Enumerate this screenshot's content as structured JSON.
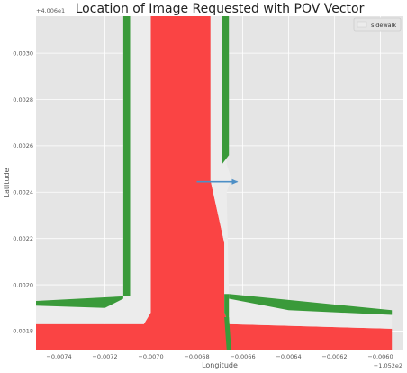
{
  "chart_data": {
    "type": "map",
    "title": "Location of Image Requested with POV Vector",
    "xlabel": "Longitude",
    "ylabel": "Latitude",
    "x_offset_label": "−1.052e2",
    "y_offset_label": "+4.006e1",
    "xlim": [
      -0.0075,
      -0.0059
    ],
    "ylim": [
      0.00172,
      0.00316
    ],
    "x_ticks": [
      -0.0074,
      -0.0072,
      -0.007,
      -0.0068,
      -0.0066,
      -0.0064,
      -0.0062,
      -0.006
    ],
    "x_tick_labels": [
      "−0.0074",
      "−0.0072",
      "−0.0070",
      "−0.0068",
      "−0.0066",
      "−0.0064",
      "−0.0062",
      "−0.0060"
    ],
    "y_ticks": [
      0.0018,
      0.002,
      0.0022,
      0.0024,
      0.0026,
      0.0028,
      0.003
    ],
    "y_tick_labels": [
      "0.0018",
      "0.0020",
      "0.0022",
      "0.0024",
      "0.0026",
      "0.0028",
      "0.0030"
    ],
    "grid": true,
    "legend": {
      "position": "top-right",
      "entries": [
        "sidewalk"
      ]
    },
    "colors": {
      "background": "#e5e5e5",
      "grid": "#ffffff",
      "road": "#fa4444",
      "sidewalk": "#ececec",
      "sidewalk_edge": "#3a9a3a",
      "arrow": "#4d8fc6"
    },
    "layers": {
      "road": [
        [
          [
            -0.007,
            0.00316
          ],
          [
            -0.00674,
            0.00316
          ],
          [
            -0.00674,
            0.00245
          ],
          [
            -0.00668,
            0.00218
          ],
          [
            -0.00668,
            0.00188
          ],
          [
            -0.00666,
            0.00183
          ],
          [
            -0.00595,
            0.00181
          ],
          [
            -0.00595,
            0.00172
          ],
          [
            -0.0075,
            0.00172
          ],
          [
            -0.0075,
            0.00183
          ],
          [
            -0.00703,
            0.00183
          ],
          [
            -0.007,
            0.00188
          ]
        ]
      ],
      "sidewalk": [
        [
          [
            -0.00712,
            0.00316
          ],
          [
            -0.007,
            0.00316
          ],
          [
            -0.007,
            0.00188
          ],
          [
            -0.00703,
            0.00183
          ],
          [
            -0.0075,
            0.00183
          ],
          [
            -0.0075,
            0.00193
          ],
          [
            -0.00712,
            0.00195
          ]
        ],
        [
          [
            -0.00674,
            0.00316
          ],
          [
            -0.00667,
            0.00316
          ],
          [
            -0.00667,
            0.00252
          ],
          [
            -0.00665,
            0.00246
          ],
          [
            -0.00667,
            0.0024
          ],
          [
            -0.00666,
            0.00196
          ],
          [
            -0.00595,
            0.00189
          ],
          [
            -0.00595,
            0.00181
          ],
          [
            -0.00666,
            0.00183
          ],
          [
            -0.00668,
            0.00188
          ],
          [
            -0.00668,
            0.00218
          ],
          [
            -0.00674,
            0.00245
          ]
        ]
      ],
      "green_edges": [
        [
          [
            -0.00712,
            0.00316
          ],
          [
            -0.00709,
            0.00316
          ],
          [
            -0.00709,
            0.00195
          ],
          [
            -0.00712,
            0.00195
          ]
        ],
        [
          [
            -0.00669,
            0.00316
          ],
          [
            -0.00666,
            0.00316
          ],
          [
            -0.00666,
            0.00256
          ],
          [
            -0.00669,
            0.00252
          ]
        ],
        [
          [
            -0.00668,
            0.00196
          ],
          [
            -0.00666,
            0.00196
          ],
          [
            -0.00666,
            0.00183
          ],
          [
            -0.00668,
            0.00188
          ]
        ],
        [
          [
            -0.0075,
            0.00193
          ],
          [
            -0.00712,
            0.00195
          ],
          [
            -0.00712,
            0.00194
          ],
          [
            -0.0072,
            0.0019
          ],
          [
            -0.0075,
            0.00191
          ]
        ],
        [
          [
            -0.00666,
            0.00196
          ],
          [
            -0.00595,
            0.00189
          ],
          [
            -0.00595,
            0.00187
          ],
          [
            -0.0064,
            0.00189
          ],
          [
            -0.00666,
            0.00194
          ]
        ],
        [
          [
            -0.00668,
            0.00186
          ],
          [
            -0.00666,
            0.00186
          ],
          [
            -0.00665,
            0.00172
          ],
          [
            -0.00667,
            0.00172
          ]
        ]
      ]
    },
    "pov_vector": {
      "from": [
        -0.0068,
        0.002445
      ],
      "to": [
        -0.0066,
        0.002445
      ]
    }
  }
}
